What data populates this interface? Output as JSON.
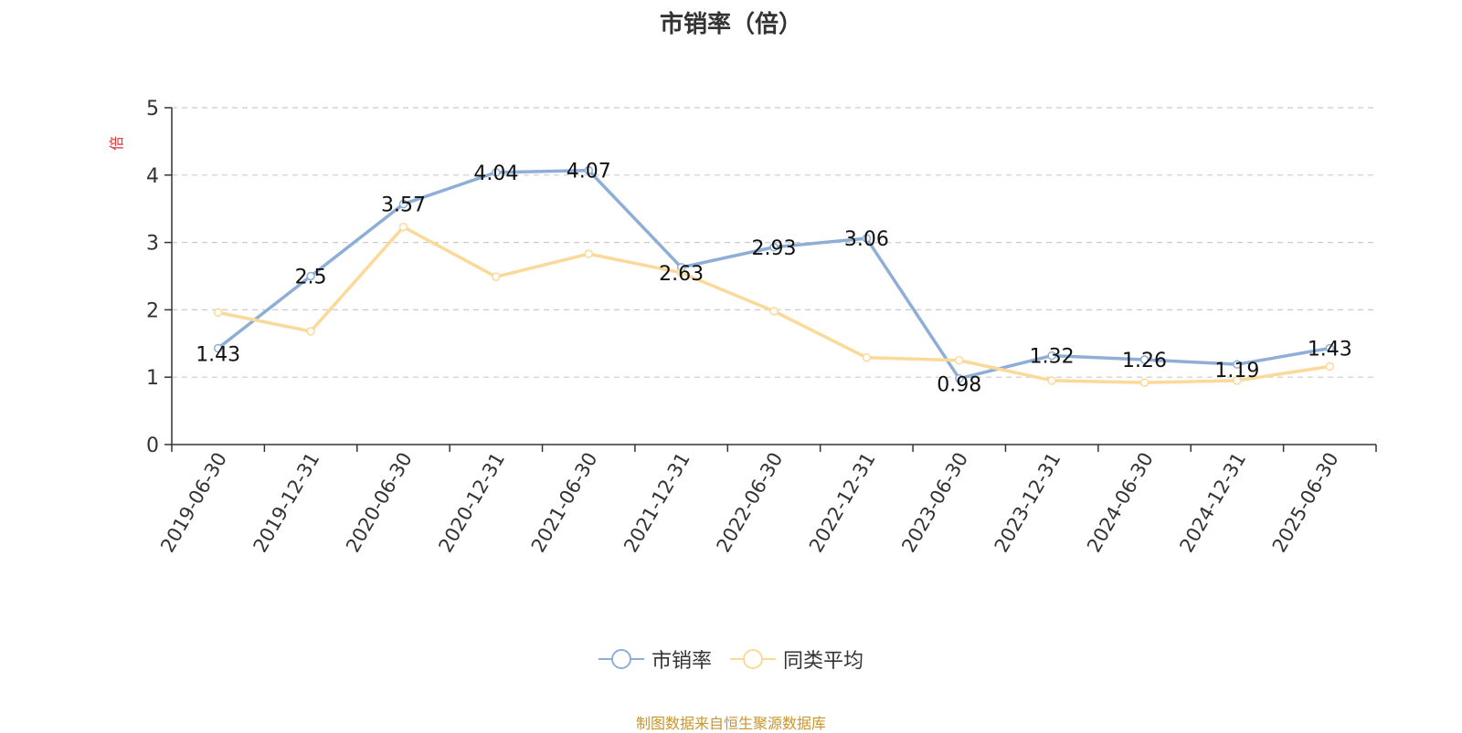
{
  "chart_data": {
    "type": "line",
    "title": "市销率（倍）",
    "ylabel": "倍",
    "xlabel": "",
    "ylim": [
      0,
      5
    ],
    "yticks": [
      0,
      1,
      2,
      3,
      4,
      5
    ],
    "grid": true,
    "legend_position": "bottom",
    "categories": [
      "2019-06-30",
      "2019-12-31",
      "2020-06-30",
      "2020-12-31",
      "2021-06-30",
      "2021-12-31",
      "2022-06-30",
      "2022-12-31",
      "2023-06-30",
      "2023-12-31",
      "2024-06-30",
      "2024-12-31",
      "2025-06-30"
    ],
    "series": [
      {
        "name": "市销率",
        "color": "#8eaed8",
        "labeled": true,
        "values": [
          1.43,
          2.5,
          3.57,
          4.04,
          4.07,
          2.63,
          2.93,
          3.06,
          0.98,
          1.32,
          1.26,
          1.19,
          1.43
        ]
      },
      {
        "name": "同类平均",
        "color": "#fbd999",
        "labeled": false,
        "values": [
          1.96,
          1.68,
          3.23,
          2.49,
          2.83,
          2.55,
          1.98,
          1.29,
          1.25,
          0.95,
          0.92,
          0.95,
          1.16
        ]
      }
    ]
  },
  "source_note": "制图数据来自恒生聚源数据库",
  "ylabel_color": "#e03030"
}
